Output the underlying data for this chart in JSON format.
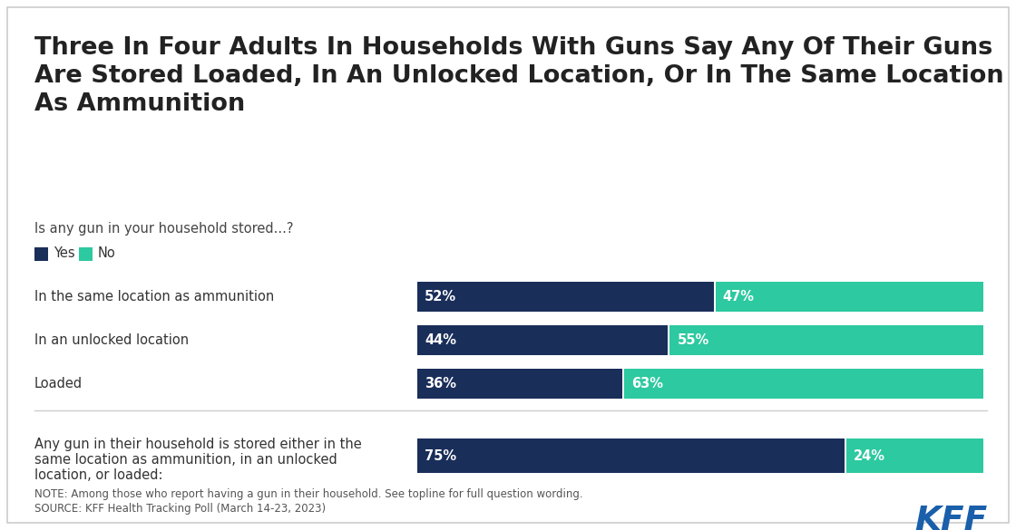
{
  "title": "Three In Four Adults In Households With Guns Say Any Of Their Guns\nAre Stored Loaded, In An Unlocked Location, Or In The Same Location\nAs Ammunition",
  "subtitle": "Is any gun in your household stored...?",
  "legend_labels": [
    "Yes",
    "No"
  ],
  "legend_colors": [
    "#1a2e5a",
    "#2dc9a0"
  ],
  "categories": [
    "In the same location as ammunition",
    "In an unlocked location",
    "Loaded"
  ],
  "yes_values": [
    52,
    44,
    36
  ],
  "no_values": [
    47,
    55,
    63
  ],
  "summary_label_lines": [
    "Any gun in their household is stored either in the",
    "same location as ammunition, in an unlocked",
    "location, or loaded:"
  ],
  "summary_yes": 75,
  "summary_no": 24,
  "yes_color": "#1a2e5a",
  "no_color": "#2dc9a0",
  "note_line1": "NOTE: Among those who report having a gun in their household. See topline for full question wording.",
  "note_line2": "SOURCE: KFF Health Tracking Poll (March 14-23, 2023)",
  "kff_color": "#1a5faa",
  "background_color": "#ffffff",
  "border_color": "#cccccc"
}
